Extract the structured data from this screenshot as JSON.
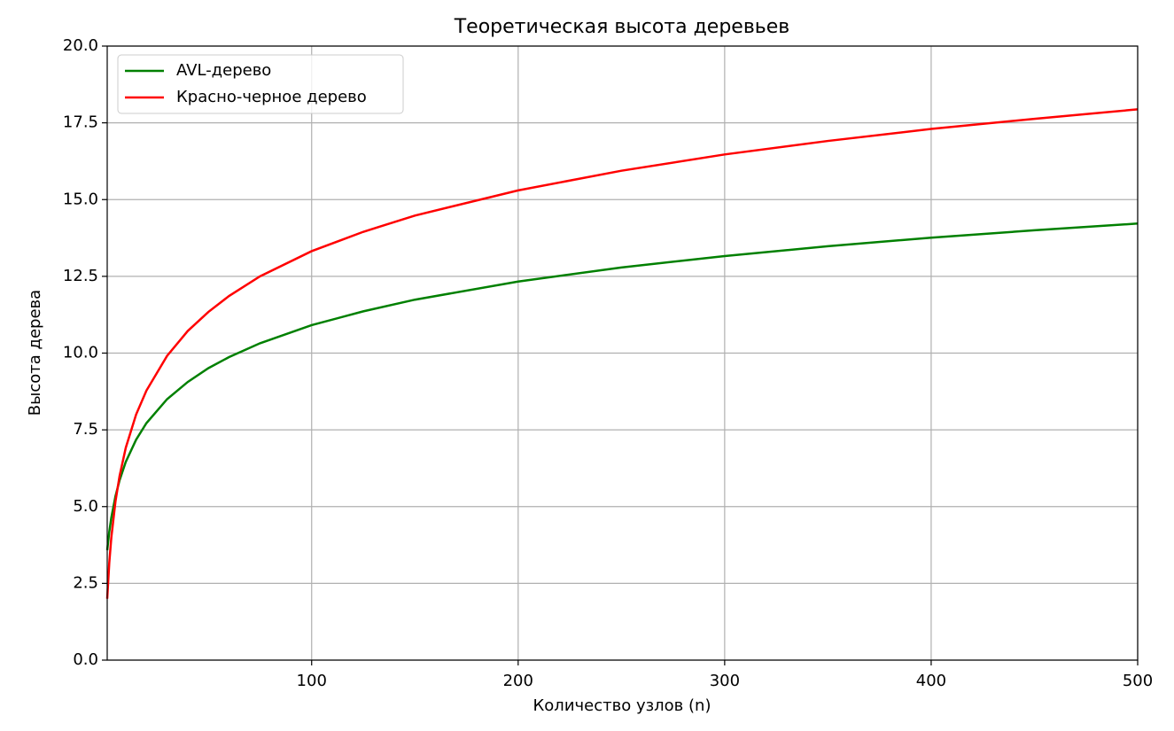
{
  "chart_data": {
    "type": "line",
    "title": "Теоретическая высота деревьев",
    "x_label": "Количество узлов (n)",
    "y_label": "Высота дерева",
    "x": [
      1,
      2,
      3,
      5,
      7,
      10,
      15,
      20,
      30,
      40,
      50,
      60,
      75,
      100,
      125,
      150,
      200,
      250,
      300,
      350,
      400,
      450,
      500
    ],
    "series": [
      {
        "name": "AVL-дерево",
        "color": "#008000",
        "values": [
          3.58,
          4.18,
          4.64,
          5.34,
          5.86,
          6.46,
          7.18,
          7.72,
          8.5,
          9.06,
          9.51,
          9.87,
          10.32,
          10.91,
          11.36,
          11.74,
          12.33,
          12.79,
          13.16,
          13.48,
          13.76,
          14.0,
          14.22
        ]
      },
      {
        "name": "Красно-черное дерево",
        "color": "#ff0000",
        "values": [
          2,
          3.17,
          4,
          5.17,
          6,
          6.92,
          8,
          8.78,
          9.91,
          10.72,
          11.34,
          11.86,
          12.5,
          13.32,
          13.95,
          14.48,
          15.3,
          15.94,
          16.47,
          16.91,
          17.3,
          17.63,
          17.94
        ]
      }
    ],
    "xlim": [
      1,
      500
    ],
    "xticks": [
      100,
      200,
      300,
      400,
      500
    ],
    "ylim": [
      0,
      20
    ],
    "yticks": [
      {
        "value": 0,
        "label": "0.0"
      },
      2.5,
      {
        "value": 5,
        "label": "5.0"
      },
      7.5,
      {
        "value": 10,
        "label": "10.0"
      },
      12.5,
      {
        "value": 15,
        "label": "15.0"
      },
      17.5,
      {
        "value": 20,
        "label": "20.0"
      }
    ],
    "grid": true,
    "legend": "upper left"
  }
}
